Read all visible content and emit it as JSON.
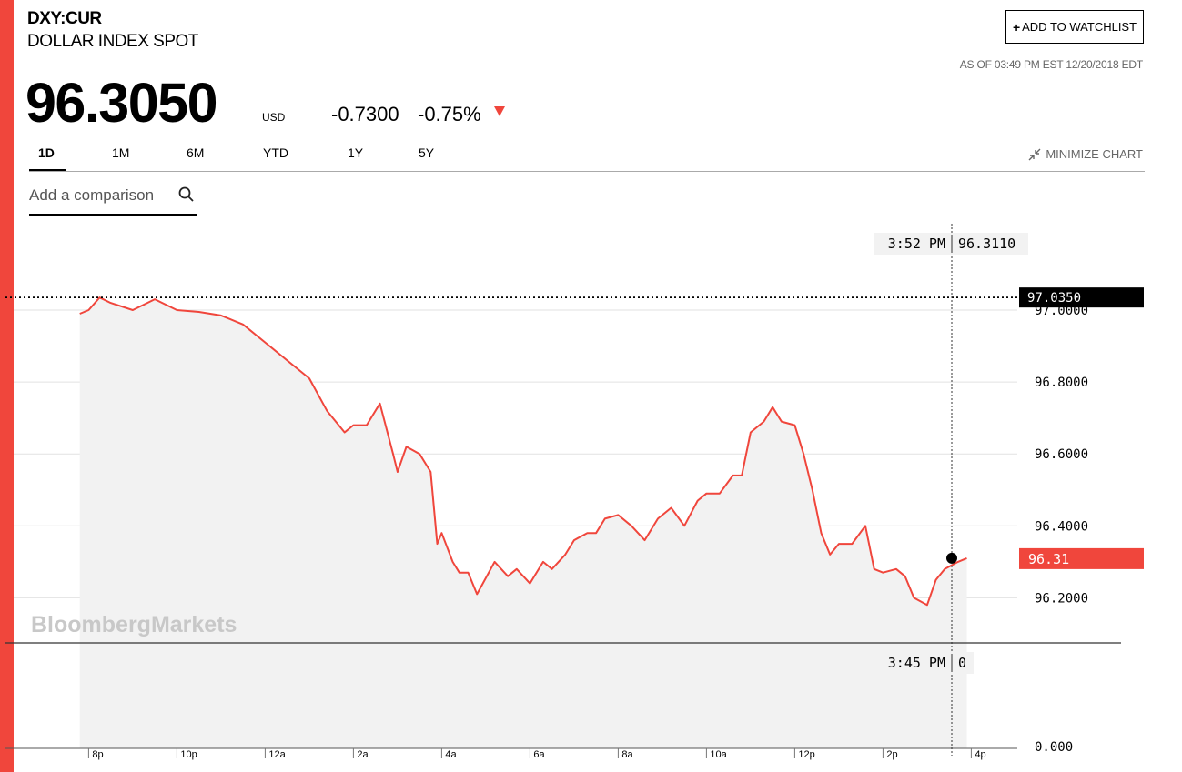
{
  "colors": {
    "accent": "#f0463c",
    "line": "#f0463c",
    "area": "#f2f2f2",
    "grid": "#e2e2e2"
  },
  "header": {
    "ticker": "DXY:CUR",
    "name": "DOLLAR INDEX SPOT",
    "watchlist_label": "ADD TO WATCHLIST",
    "as_of": "AS OF 03:49 PM EST 12/20/2018 EDT"
  },
  "quote": {
    "price": "96.3050",
    "currency": "USD",
    "change": "-0.7300",
    "change_pct": "-0.75%",
    "direction": "down"
  },
  "tabs": [
    {
      "label": "1D",
      "active": true
    },
    {
      "label": "1M",
      "active": false
    },
    {
      "label": "6M",
      "active": false
    },
    {
      "label": "YTD",
      "active": false
    },
    {
      "label": "1Y",
      "active": false
    },
    {
      "label": "5Y",
      "active": false
    }
  ],
  "minimize_label": "MINIMIZE CHART",
  "comparison": {
    "placeholder": "Add a comparison",
    "icon": "search-icon"
  },
  "watermark": "BloombergMarkets",
  "chart_data": {
    "type": "line",
    "title": "",
    "xlabel": "",
    "ylabel": "",
    "x_ticks": [
      "8p",
      "10p",
      "12a",
      "2a",
      "4a",
      "6a",
      "8a",
      "10a",
      "12p",
      "2p",
      "4p"
    ],
    "x_range_hours": [
      19.6,
      16.3
    ],
    "y_ticks": [
      "97.0000",
      "96.8000",
      "96.6000",
      "96.4000",
      "96.2000"
    ],
    "ylim": [
      96.08,
      97.08
    ],
    "volume_axis_label": "0.000",
    "prev_close": {
      "value": 97.035,
      "label": "97.0350"
    },
    "last": {
      "value": 96.31,
      "label": "96.31"
    },
    "crosshair": {
      "time": "3:52 PM",
      "value": "96.3110",
      "volume_time": "3:45 PM",
      "volume_value": "0"
    },
    "series": [
      {
        "x_hours": [
          19.8,
          20.0,
          20.25,
          20.5,
          21.0,
          21.5,
          22.0,
          22.5,
          23.0,
          23.5,
          24.0,
          24.5,
          25.0,
          25.4,
          25.8,
          26.0,
          26.3,
          26.6,
          26.9,
          27.0,
          27.2,
          27.5,
          27.75,
          27.9,
          28.0,
          28.25,
          28.4,
          28.6,
          28.8,
          29.2,
          29.5,
          29.7,
          30.0,
          30.3,
          30.5,
          30.8,
          31.0,
          31.3,
          31.5,
          31.7,
          32.0,
          32.3,
          32.6,
          32.9,
          33.2,
          33.5,
          33.8,
          34.0,
          34.3,
          34.6,
          34.8,
          35.0,
          35.3,
          35.5,
          35.7,
          36.0,
          36.2,
          36.4,
          36.6,
          36.8,
          37.0,
          37.3,
          37.6,
          37.8,
          38.0,
          38.3,
          38.5,
          38.7,
          39.0,
          39.2,
          39.4,
          39.7,
          39.9
        ],
        "y": [
          96.99,
          97.0,
          97.035,
          97.02,
          97.0,
          97.03,
          97.0,
          96.995,
          96.985,
          96.96,
          96.91,
          96.86,
          96.81,
          96.72,
          96.66,
          96.68,
          96.68,
          96.74,
          96.6,
          96.55,
          96.62,
          96.6,
          96.55,
          96.35,
          96.38,
          96.3,
          96.27,
          96.27,
          96.21,
          96.3,
          96.26,
          96.28,
          96.24,
          96.3,
          96.28,
          96.32,
          96.36,
          96.38,
          96.38,
          96.42,
          96.43,
          96.4,
          96.36,
          96.42,
          96.45,
          96.4,
          96.47,
          96.49,
          96.49,
          96.54,
          96.54,
          96.66,
          96.69,
          96.73,
          96.69,
          96.68,
          96.6,
          96.5,
          96.38,
          96.32,
          96.35,
          96.35,
          96.4,
          96.28,
          96.27,
          96.28,
          96.26,
          96.2,
          96.18,
          96.25,
          96.28,
          96.3,
          96.31
        ]
      }
    ]
  }
}
